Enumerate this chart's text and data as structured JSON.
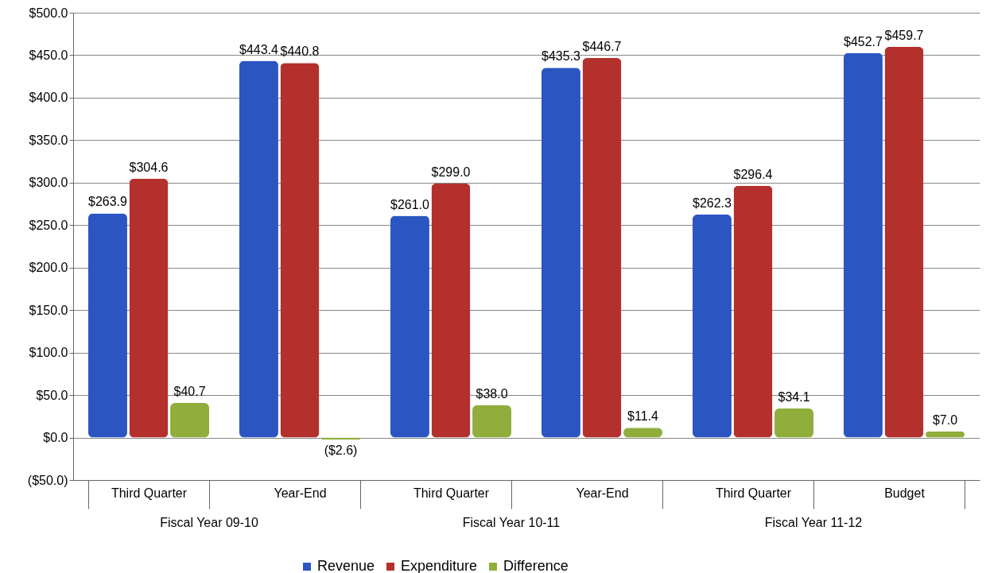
{
  "chart_data": {
    "type": "bar",
    "categories": [
      "Third Quarter",
      "Year-End",
      "Third Quarter",
      "Year-End",
      "Third Quarter",
      "Budget"
    ],
    "annotations": [
      "Fiscal Year 09-10",
      "Fiscal Year 10-11",
      "Fiscal Year 11-12"
    ],
    "series": [
      {
        "name": "Revenue",
        "color": "#2b56c2",
        "values": [
          263.9,
          443.4,
          261.0,
          435.3,
          262.3,
          452.7
        ],
        "value_labels": [
          "$263.9",
          "$443.4",
          "$261.0",
          "$435.3",
          "$262.3",
          "$452.7"
        ]
      },
      {
        "name": "Expenditure",
        "color": "#b3302c",
        "values": [
          304.6,
          440.8,
          299.0,
          446.7,
          296.4,
          459.7
        ],
        "value_labels": [
          "$304.6",
          "$440.8",
          "$299.0",
          "$446.7",
          "$296.4",
          "$459.7"
        ]
      },
      {
        "name": "Difference",
        "color": "#8fae3c",
        "values": [
          40.7,
          -2.6,
          38.0,
          11.4,
          34.1,
          7.0
        ],
        "value_labels": [
          "$40.7",
          "($2.6)",
          "$38.0",
          "$11.4",
          "$34.1",
          "$7.0"
        ]
      }
    ],
    "ylim": [
      -50,
      500
    ],
    "yticks": [
      {
        "value": -50,
        "label": "($50.0)"
      },
      {
        "value": 0,
        "label": "$0.0"
      },
      {
        "value": 50,
        "label": "$50.0"
      },
      {
        "value": 100,
        "label": "$100.0"
      },
      {
        "value": 150,
        "label": "$150.0"
      },
      {
        "value": 200,
        "label": "$200.0"
      },
      {
        "value": 250,
        "label": "$250.0"
      },
      {
        "value": 300,
        "label": "$300.0"
      },
      {
        "value": 350,
        "label": "$350.0"
      },
      {
        "value": 400,
        "label": "$400.0"
      },
      {
        "value": 450,
        "label": "$450.0"
      },
      {
        "value": 500,
        "label": "$500.0"
      }
    ],
    "grid": "y",
    "legend": "bottom"
  }
}
